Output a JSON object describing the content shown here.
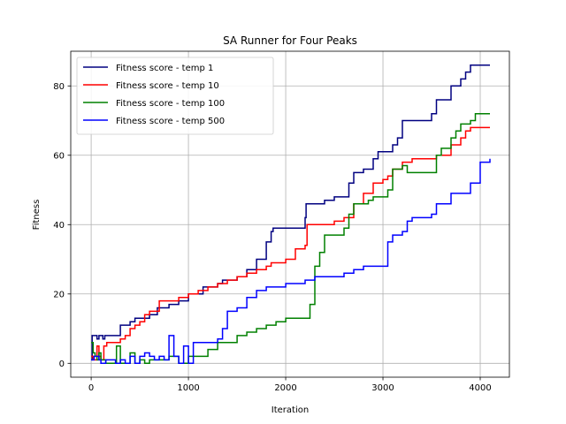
{
  "chart_data": {
    "type": "line",
    "title": "SA Runner for Four Peaks",
    "xlabel": "Iteration",
    "ylabel": "Fitness",
    "xlim": [
      -210,
      4300
    ],
    "ylim": [
      -4,
      90
    ],
    "xticks": [
      0,
      1000,
      2000,
      3000,
      4000
    ],
    "yticks": [
      0,
      20,
      40,
      60,
      80
    ],
    "grid": true,
    "legend_position": "top-left",
    "series": [
      {
        "name": "Fitness score - temp 1",
        "color": "#000080",
        "points": [
          [
            0,
            1
          ],
          [
            10,
            8
          ],
          [
            60,
            7
          ],
          [
            80,
            8
          ],
          [
            120,
            7
          ],
          [
            140,
            8
          ],
          [
            200,
            8
          ],
          [
            300,
            11
          ],
          [
            330,
            11
          ],
          [
            400,
            12
          ],
          [
            450,
            13
          ],
          [
            500,
            13
          ],
          [
            600,
            14
          ],
          [
            680,
            16
          ],
          [
            700,
            16
          ],
          [
            800,
            17
          ],
          [
            900,
            18
          ],
          [
            950,
            18
          ],
          [
            1000,
            20
          ],
          [
            1100,
            20
          ],
          [
            1150,
            22
          ],
          [
            1300,
            23
          ],
          [
            1350,
            24
          ],
          [
            1500,
            25
          ],
          [
            1600,
            27
          ],
          [
            1700,
            30
          ],
          [
            1800,
            35
          ],
          [
            1850,
            38
          ],
          [
            1870,
            39
          ],
          [
            2000,
            39
          ],
          [
            2100,
            39
          ],
          [
            2200,
            42
          ],
          [
            2210,
            46
          ],
          [
            2300,
            46
          ],
          [
            2400,
            47
          ],
          [
            2500,
            48
          ],
          [
            2650,
            52
          ],
          [
            2700,
            55
          ],
          [
            2800,
            56
          ],
          [
            2900,
            59
          ],
          [
            2950,
            61
          ],
          [
            3000,
            61
          ],
          [
            3100,
            63
          ],
          [
            3150,
            65
          ],
          [
            3200,
            70
          ],
          [
            3300,
            70
          ],
          [
            3500,
            72
          ],
          [
            3550,
            76
          ],
          [
            3700,
            80
          ],
          [
            3800,
            82
          ],
          [
            3850,
            84
          ],
          [
            3900,
            86
          ],
          [
            4000,
            86
          ],
          [
            4100,
            86
          ]
        ]
      },
      {
        "name": "Fitness score - temp 10",
        "color": "#ff0000",
        "points": [
          [
            0,
            2
          ],
          [
            20,
            1
          ],
          [
            60,
            5
          ],
          [
            80,
            2
          ],
          [
            100,
            1
          ],
          [
            130,
            5
          ],
          [
            160,
            6
          ],
          [
            200,
            6
          ],
          [
            300,
            7
          ],
          [
            350,
            8
          ],
          [
            400,
            10
          ],
          [
            450,
            11
          ],
          [
            500,
            12
          ],
          [
            550,
            14
          ],
          [
            600,
            15
          ],
          [
            700,
            18
          ],
          [
            750,
            18
          ],
          [
            800,
            18
          ],
          [
            900,
            19
          ],
          [
            950,
            19
          ],
          [
            1000,
            20
          ],
          [
            1050,
            20
          ],
          [
            1100,
            21
          ],
          [
            1150,
            21
          ],
          [
            1200,
            22
          ],
          [
            1300,
            23
          ],
          [
            1400,
            24
          ],
          [
            1500,
            25
          ],
          [
            1600,
            26
          ],
          [
            1700,
            27
          ],
          [
            1800,
            28
          ],
          [
            1850,
            29
          ],
          [
            1900,
            29
          ],
          [
            2000,
            30
          ],
          [
            2100,
            33
          ],
          [
            2200,
            34
          ],
          [
            2220,
            40
          ],
          [
            2400,
            40
          ],
          [
            2500,
            41
          ],
          [
            2550,
            41
          ],
          [
            2600,
            42
          ],
          [
            2650,
            42
          ],
          [
            2700,
            46
          ],
          [
            2800,
            49
          ],
          [
            2900,
            52
          ],
          [
            3000,
            53
          ],
          [
            3050,
            54
          ],
          [
            3100,
            56
          ],
          [
            3200,
            58
          ],
          [
            3300,
            59
          ],
          [
            3500,
            59
          ],
          [
            3550,
            60
          ],
          [
            3700,
            63
          ],
          [
            3800,
            65
          ],
          [
            3850,
            67
          ],
          [
            3900,
            68
          ],
          [
            4000,
            68
          ],
          [
            4100,
            68
          ]
        ]
      },
      {
        "name": "Fitness score - temp 100",
        "color": "#008000",
        "points": [
          [
            0,
            6
          ],
          [
            20,
            3
          ],
          [
            40,
            2
          ],
          [
            60,
            1
          ],
          [
            80,
            3
          ],
          [
            100,
            1
          ],
          [
            150,
            0
          ],
          [
            200,
            0
          ],
          [
            260,
            5
          ],
          [
            300,
            0
          ],
          [
            400,
            3
          ],
          [
            450,
            0
          ],
          [
            500,
            1
          ],
          [
            550,
            0
          ],
          [
            600,
            1
          ],
          [
            700,
            1
          ],
          [
            800,
            2
          ],
          [
            900,
            0
          ],
          [
            1000,
            2
          ],
          [
            1100,
            2
          ],
          [
            1200,
            4
          ],
          [
            1300,
            6
          ],
          [
            1500,
            8
          ],
          [
            1600,
            9
          ],
          [
            1700,
            10
          ],
          [
            1800,
            11
          ],
          [
            1900,
            12
          ],
          [
            2000,
            13
          ],
          [
            2200,
            13
          ],
          [
            2250,
            17
          ],
          [
            2300,
            28
          ],
          [
            2350,
            32
          ],
          [
            2400,
            37
          ],
          [
            2600,
            39
          ],
          [
            2650,
            43
          ],
          [
            2700,
            46
          ],
          [
            2800,
            46
          ],
          [
            2850,
            47
          ],
          [
            2900,
            48
          ],
          [
            3000,
            48
          ],
          [
            3050,
            50
          ],
          [
            3100,
            56
          ],
          [
            3200,
            57
          ],
          [
            3250,
            55
          ],
          [
            3500,
            55
          ],
          [
            3550,
            60
          ],
          [
            3600,
            62
          ],
          [
            3700,
            65
          ],
          [
            3750,
            67
          ],
          [
            3800,
            69
          ],
          [
            3900,
            70
          ],
          [
            3950,
            72
          ],
          [
            4000,
            72
          ],
          [
            4100,
            72
          ]
        ]
      },
      {
        "name": "Fitness score - temp 500",
        "color": "#0000ff",
        "points": [
          [
            0,
            1
          ],
          [
            30,
            2
          ],
          [
            80,
            1
          ],
          [
            100,
            0
          ],
          [
            150,
            1
          ],
          [
            200,
            1
          ],
          [
            250,
            0
          ],
          [
            300,
            1
          ],
          [
            350,
            0
          ],
          [
            400,
            2
          ],
          [
            450,
            0
          ],
          [
            500,
            2
          ],
          [
            550,
            3
          ],
          [
            600,
            2
          ],
          [
            650,
            1
          ],
          [
            700,
            2
          ],
          [
            750,
            1
          ],
          [
            800,
            8
          ],
          [
            850,
            2
          ],
          [
            900,
            0
          ],
          [
            950,
            5
          ],
          [
            1000,
            0
          ],
          [
            1050,
            6
          ],
          [
            1200,
            6
          ],
          [
            1300,
            7
          ],
          [
            1350,
            10
          ],
          [
            1400,
            15
          ],
          [
            1500,
            16
          ],
          [
            1600,
            19
          ],
          [
            1700,
            21
          ],
          [
            1800,
            22
          ],
          [
            1900,
            22
          ],
          [
            2000,
            23
          ],
          [
            2100,
            23
          ],
          [
            2200,
            24
          ],
          [
            2300,
            25
          ],
          [
            2500,
            25
          ],
          [
            2600,
            26
          ],
          [
            2700,
            27
          ],
          [
            2800,
            28
          ],
          [
            3000,
            28
          ],
          [
            3050,
            35
          ],
          [
            3100,
            37
          ],
          [
            3200,
            38
          ],
          [
            3250,
            41
          ],
          [
            3300,
            42
          ],
          [
            3500,
            43
          ],
          [
            3550,
            46
          ],
          [
            3700,
            49
          ],
          [
            3900,
            52
          ],
          [
            4000,
            58
          ],
          [
            4100,
            59
          ]
        ]
      }
    ]
  }
}
